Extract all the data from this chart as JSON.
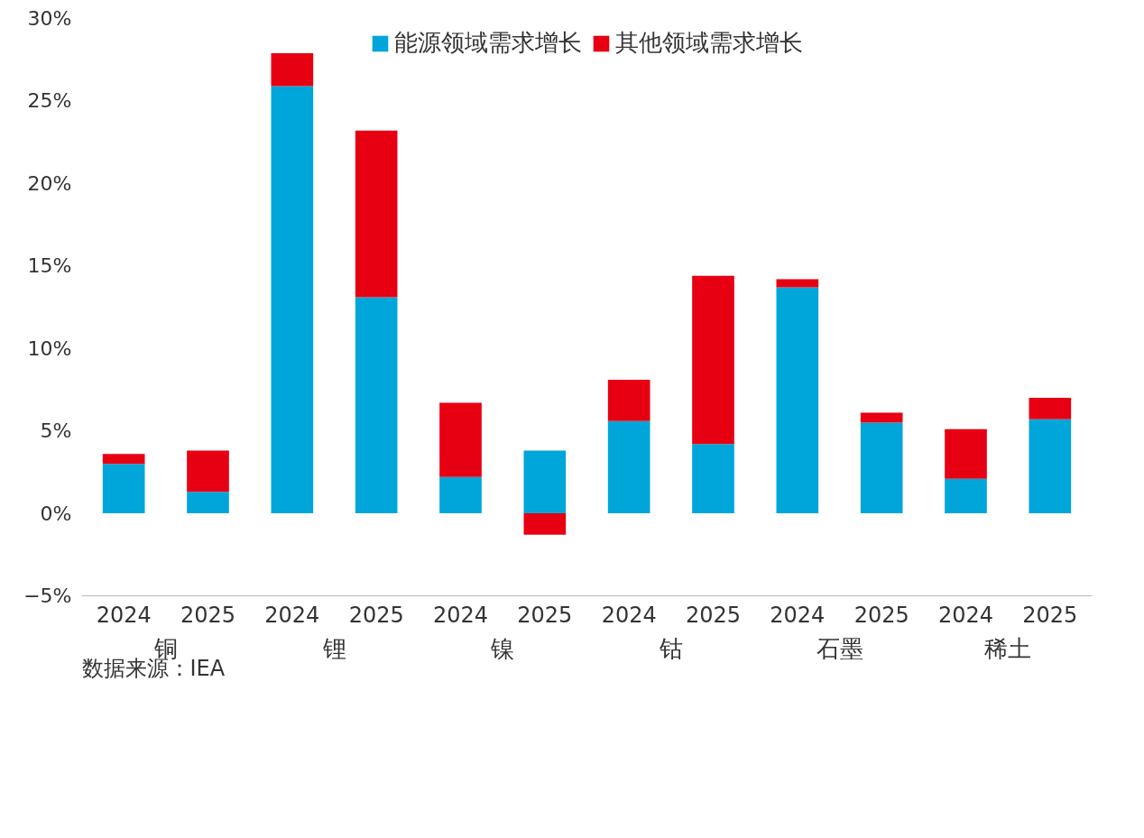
{
  "chart_data": {
    "type": "bar",
    "stacked": true,
    "categories": [
      "2024",
      "2025",
      "2024",
      "2025",
      "2024",
      "2025",
      "2024",
      "2025",
      "2024",
      "2025",
      "2024",
      "2025"
    ],
    "series": [
      {
        "name": "能源领域需求增长",
        "color": "#00a6d9",
        "values": [
          3.0,
          1.3,
          25.9,
          13.1,
          2.2,
          3.8,
          5.6,
          4.2,
          13.7,
          5.5,
          2.1,
          5.7
        ]
      },
      {
        "name": "其他领域需求增长",
        "color": "#e60012",
        "values": [
          0.6,
          2.5,
          2.0,
          10.1,
          4.5,
          -1.3,
          2.5,
          10.2,
          0.5,
          0.6,
          3.0,
          1.3
        ]
      }
    ],
    "ylim": [
      -5,
      30
    ],
    "yticks": [
      {
        "value": -5,
        "label": "−5%"
      },
      {
        "value": 0,
        "label": "0%"
      },
      {
        "value": 5,
        "label": "5%"
      },
      {
        "value": 10,
        "label": "10%"
      },
      {
        "value": 15,
        "label": "15%"
      },
      {
        "value": 20,
        "label": "20%"
      },
      {
        "value": 25,
        "label": "25%"
      },
      {
        "value": 30,
        "label": "30%"
      }
    ],
    "annotations": [
      "铜",
      "锂",
      "镍",
      "钴",
      "石墨",
      "稀土",
      "数据来源：IEA"
    ],
    "grid": false,
    "legend": "top"
  }
}
